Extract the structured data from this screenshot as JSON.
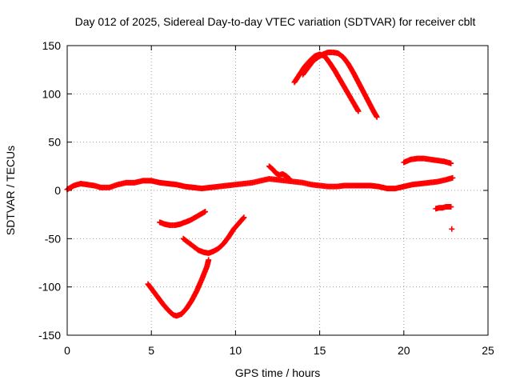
{
  "chart_data": {
    "type": "scatter",
    "title": "Day 012 of 2025, Sidereal Day-to-day VTEC variation (SDTVAR) for receiver cblt",
    "xlabel": "GPS time / hours",
    "ylabel": "SDTVAR / TECUs",
    "xlim": [
      0,
      25
    ],
    "ylim": [
      -150,
      150
    ],
    "xticks": [
      0,
      5,
      10,
      15,
      20,
      25
    ],
    "yticks": [
      -150,
      -100,
      -50,
      0,
      50,
      100,
      150
    ],
    "grid": true,
    "marker_color": "#ff0000",
    "series": [
      {
        "name": "baseline",
        "points": [
          [
            0.0,
            1
          ],
          [
            0.4,
            5
          ],
          [
            0.8,
            7
          ],
          [
            1.2,
            6
          ],
          [
            1.6,
            5
          ],
          [
            2.0,
            3
          ],
          [
            2.5,
            3
          ],
          [
            3.0,
            6
          ],
          [
            3.5,
            8
          ],
          [
            4.0,
            8
          ],
          [
            4.5,
            10
          ],
          [
            5.0,
            10
          ],
          [
            5.5,
            8
          ],
          [
            6.0,
            7
          ],
          [
            6.5,
            6
          ],
          [
            7.0,
            4
          ],
          [
            7.5,
            3
          ],
          [
            8.0,
            2
          ],
          [
            8.5,
            3
          ],
          [
            9.0,
            4
          ],
          [
            9.5,
            5
          ],
          [
            10.0,
            6
          ],
          [
            10.5,
            7
          ],
          [
            11.0,
            8
          ],
          [
            11.5,
            10
          ],
          [
            12.0,
            12
          ],
          [
            12.5,
            11
          ],
          [
            13.0,
            10
          ],
          [
            13.5,
            9
          ],
          [
            14.0,
            8
          ],
          [
            14.5,
            6
          ],
          [
            15.0,
            5
          ],
          [
            15.5,
            4
          ],
          [
            16.0,
            4
          ],
          [
            16.5,
            5
          ],
          [
            17.0,
            5
          ],
          [
            17.5,
            5
          ],
          [
            18.0,
            5
          ],
          [
            18.5,
            4
          ],
          [
            19.0,
            2
          ],
          [
            19.5,
            2
          ],
          [
            20.0,
            4
          ],
          [
            20.5,
            6
          ],
          [
            21.0,
            7
          ],
          [
            21.5,
            8
          ],
          [
            22.0,
            9
          ],
          [
            22.5,
            11
          ],
          [
            22.9,
            13
          ]
        ]
      },
      {
        "name": "spike-12h",
        "points": [
          [
            12.0,
            25
          ],
          [
            12.2,
            22
          ],
          [
            12.4,
            18
          ],
          [
            12.6,
            16
          ],
          [
            12.8,
            17
          ],
          [
            13.0,
            15
          ],
          [
            13.2,
            12
          ]
        ]
      },
      {
        "name": "arc-high-1",
        "points": [
          [
            13.5,
            112
          ],
          [
            13.8,
            120
          ],
          [
            14.1,
            128
          ],
          [
            14.4,
            134
          ],
          [
            14.7,
            139
          ],
          [
            15.0,
            141
          ],
          [
            15.3,
            139
          ],
          [
            15.6,
            132
          ],
          [
            15.9,
            124
          ],
          [
            16.2,
            115
          ],
          [
            16.5,
            106
          ],
          [
            16.8,
            97
          ],
          [
            17.1,
            88
          ],
          [
            17.3,
            82
          ]
        ]
      },
      {
        "name": "arc-high-2",
        "points": [
          [
            14.0,
            120
          ],
          [
            14.3,
            127
          ],
          [
            14.6,
            134
          ],
          [
            14.9,
            138
          ],
          [
            15.2,
            141
          ],
          [
            15.5,
            143
          ],
          [
            15.8,
            143
          ],
          [
            16.1,
            142
          ],
          [
            16.4,
            138
          ],
          [
            16.7,
            131
          ],
          [
            17.0,
            122
          ],
          [
            17.3,
            112
          ],
          [
            17.6,
            102
          ],
          [
            17.9,
            92
          ],
          [
            18.2,
            82
          ],
          [
            18.4,
            76
          ]
        ]
      },
      {
        "name": "arc-low-deep",
        "points": [
          [
            4.8,
            -97
          ],
          [
            5.1,
            -104
          ],
          [
            5.4,
            -111
          ],
          [
            5.7,
            -118
          ],
          [
            6.0,
            -124
          ],
          [
            6.3,
            -129
          ],
          [
            6.5,
            -130
          ],
          [
            6.8,
            -128
          ],
          [
            7.1,
            -122
          ],
          [
            7.4,
            -114
          ],
          [
            7.7,
            -104
          ],
          [
            8.0,
            -92
          ],
          [
            8.3,
            -79
          ],
          [
            8.4,
            -72
          ]
        ]
      },
      {
        "name": "arc-low-mid",
        "points": [
          [
            5.5,
            -33
          ],
          [
            5.8,
            -35
          ],
          [
            6.1,
            -36
          ],
          [
            6.4,
            -36
          ],
          [
            6.7,
            -35
          ],
          [
            7.0,
            -33
          ],
          [
            7.3,
            -31
          ],
          [
            7.6,
            -28
          ],
          [
            7.9,
            -25
          ],
          [
            8.2,
            -22
          ]
        ]
      },
      {
        "name": "arc-low-shallow",
        "points": [
          [
            6.9,
            -50
          ],
          [
            7.2,
            -54
          ],
          [
            7.5,
            -58
          ],
          [
            7.8,
            -62
          ],
          [
            8.1,
            -64
          ],
          [
            8.4,
            -65
          ],
          [
            8.7,
            -63
          ],
          [
            9.0,
            -60
          ],
          [
            9.3,
            -55
          ],
          [
            9.6,
            -48
          ],
          [
            9.9,
            -40
          ],
          [
            10.2,
            -34
          ],
          [
            10.5,
            -28
          ]
        ]
      },
      {
        "name": "segment-30",
        "points": [
          [
            20.0,
            29
          ],
          [
            20.4,
            32
          ],
          [
            20.8,
            33
          ],
          [
            21.2,
            33
          ],
          [
            21.6,
            32
          ],
          [
            22.0,
            31
          ],
          [
            22.4,
            30
          ],
          [
            22.8,
            28
          ]
        ]
      },
      {
        "name": "segment-neg18",
        "points": [
          [
            21.9,
            -19
          ],
          [
            22.1,
            -18
          ],
          [
            22.3,
            -18
          ],
          [
            22.5,
            -17
          ],
          [
            22.7,
            -17
          ],
          [
            22.8,
            -17
          ]
        ]
      },
      {
        "name": "point-neg40",
        "points": [
          [
            22.85,
            -40
          ]
        ]
      }
    ]
  }
}
